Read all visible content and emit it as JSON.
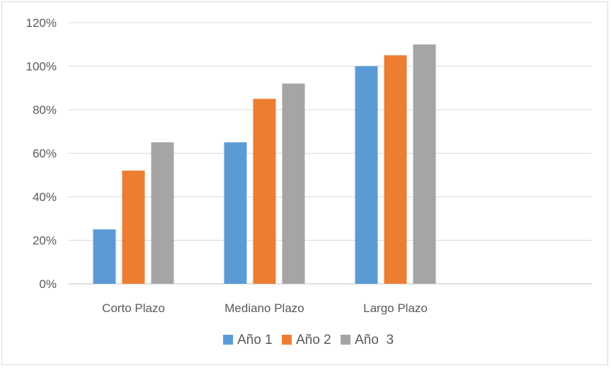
{
  "chart_data": {
    "type": "bar",
    "title": "",
    "xlabel": "",
    "ylabel": "",
    "categories": [
      "Corto Plazo",
      "Mediano Plazo",
      "Largo Plazo"
    ],
    "series": [
      {
        "name": "Año 1",
        "color": "#5b9bd5",
        "values": [
          25,
          65,
          100
        ]
      },
      {
        "name": "Año 2",
        "color": "#ed7d31",
        "values": [
          52,
          85,
          105
        ]
      },
      {
        "name": "Año  3",
        "color": "#a5a5a5",
        "values": [
          65,
          92,
          110
        ]
      }
    ],
    "ylim": [
      0,
      120
    ],
    "yticks": [
      0,
      20,
      40,
      60,
      80,
      100,
      120
    ],
    "ytick_labels": [
      "0%",
      "20%",
      "40%",
      "60%",
      "80%",
      "100%",
      "120%"
    ],
    "grid": true,
    "legend_position": "bottom"
  }
}
